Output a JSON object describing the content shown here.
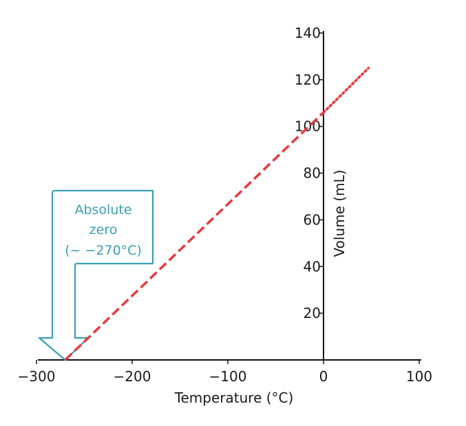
{
  "chart_data": {
    "type": "line",
    "title": "",
    "xlabel": "Temperature (°C)",
    "ylabel": "Volume (mL)",
    "xlim": [
      -300,
      100
    ],
    "ylim": [
      0,
      140
    ],
    "x_ticks": [
      -300,
      -200,
      -100,
      0,
      100
    ],
    "x_tick_labels": [
      "−300",
      "−200",
      "−100",
      "0",
      "100"
    ],
    "y_ticks": [
      20,
      40,
      60,
      80,
      100,
      120,
      140
    ],
    "y_tick_labels": [
      "20",
      "40",
      "60",
      "80",
      "100",
      "120",
      "140"
    ],
    "grid": false,
    "series": [
      {
        "style": "dashed",
        "color": "#e8383d",
        "x": [
          -270,
          0
        ],
        "y": [
          0,
          106
        ]
      },
      {
        "style": "dotted",
        "color": "#e8383d",
        "x": [
          0,
          47
        ],
        "y": [
          106,
          125
        ]
      }
    ],
    "annotation": {
      "lines": [
        "Absolute",
        "zero",
        "(~ −270°C)"
      ],
      "points_to_x": -270,
      "points_to_y": 0,
      "color": "#3a9fb5"
    }
  }
}
